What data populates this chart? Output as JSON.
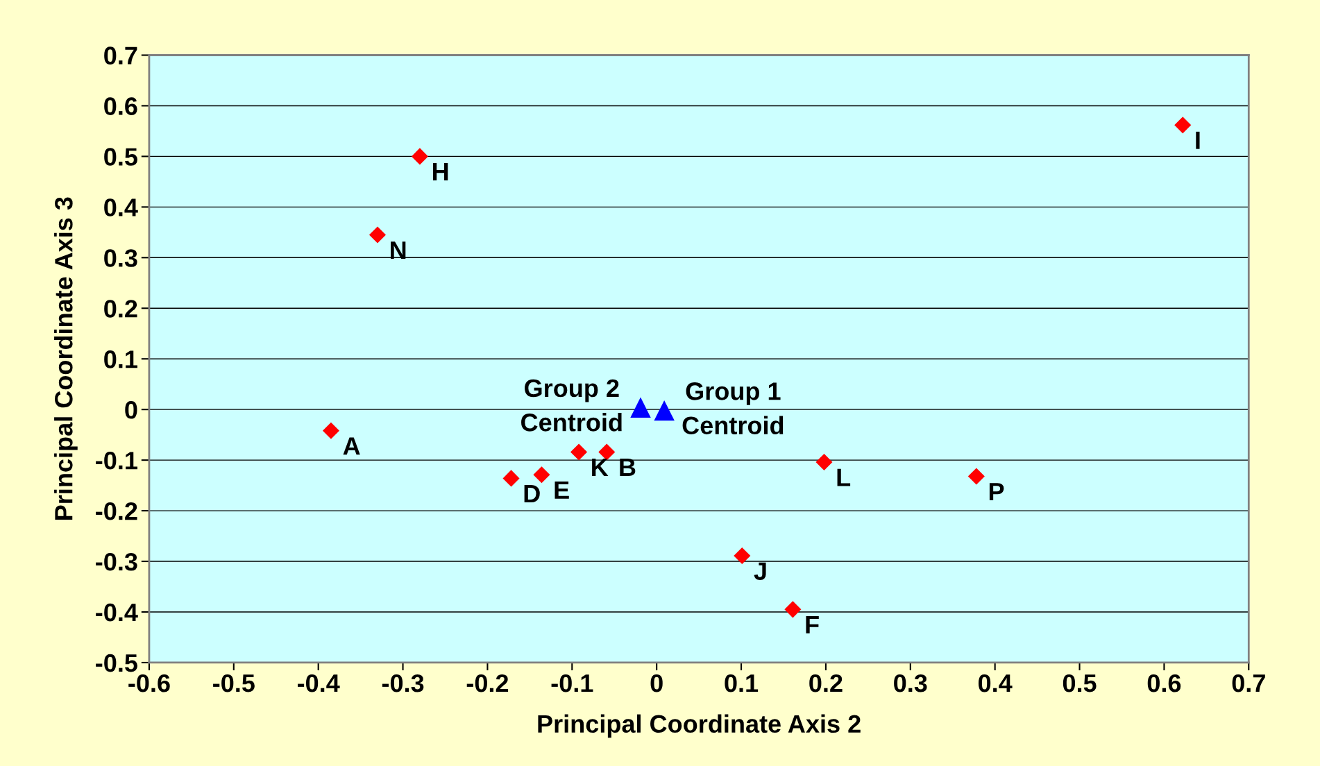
{
  "chart_data": {
    "type": "scatter",
    "xlabel": "Principal Coordinate Axis 2",
    "ylabel": "Principal Coordinate Axis 3",
    "series": [
      {
        "color": "#ff0000",
        "marker": "diamond",
        "x": [
          -0.28,
          -0.33,
          -0.385,
          -0.172,
          -0.136,
          -0.092,
          -0.059,
          0.198,
          0.378,
          0.101,
          0.161,
          0.622
        ],
        "values": [
          0.5,
          0.345,
          -0.042,
          -0.136,
          -0.129,
          -0.084,
          -0.084,
          -0.104,
          -0.132,
          -0.289,
          -0.395,
          0.562
        ]
      },
      {
        "color": "#0000ff",
        "marker": "triangle",
        "x": [
          -0.019,
          0.009
        ],
        "values": [
          0.004,
          -0.002
        ]
      }
    ],
    "annotations": [
      {
        "text": "H",
        "x": -0.28,
        "y": 0.5
      },
      {
        "text": "N",
        "x": -0.33,
        "y": 0.345
      },
      {
        "text": "A",
        "x": -0.385,
        "y": -0.042
      },
      {
        "text": "D",
        "x": -0.172,
        "y": -0.136
      },
      {
        "text": "E",
        "x": -0.136,
        "y": -0.129
      },
      {
        "text": "K",
        "x": -0.092,
        "y": -0.084
      },
      {
        "text": "B",
        "x": -0.059,
        "y": -0.084
      },
      {
        "text": "L",
        "x": 0.198,
        "y": -0.104
      },
      {
        "text": "P",
        "x": 0.378,
        "y": -0.132
      },
      {
        "text": "J",
        "x": 0.101,
        "y": -0.289
      },
      {
        "text": "F",
        "x": 0.161,
        "y": -0.395
      },
      {
        "text": "I",
        "x": 0.622,
        "y": 0.562
      },
      {
        "text": "Group 2\nCentroid",
        "x": -0.019,
        "y": 0.004
      },
      {
        "text": "Group 1\nCentroid",
        "x": 0.009,
        "y": -0.002
      }
    ],
    "xlim": [
      -0.6,
      0.7
    ],
    "xticks": [
      -0.6,
      -0.5,
      -0.4,
      -0.3,
      -0.2,
      -0.1,
      0,
      0.1,
      0.2,
      0.3,
      0.4,
      0.5,
      0.6,
      0.7
    ],
    "ylim": [
      -0.5,
      0.7
    ],
    "yticks": [
      -0.5,
      -0.4,
      -0.3,
      -0.2,
      -0.1,
      0,
      0.1,
      0.2,
      0.3,
      0.4,
      0.5,
      0.6,
      0.7
    ],
    "grid": "y",
    "legend": false
  }
}
